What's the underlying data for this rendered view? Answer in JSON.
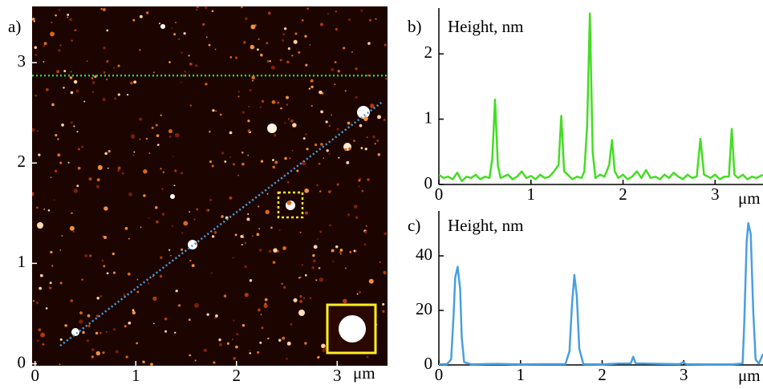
{
  "chart_data": [
    {
      "type": "image",
      "label": "a)",
      "x_unit": "μm",
      "xlim": [
        -0.03,
        3.5
      ],
      "ylim": [
        -0.02,
        3.56
      ],
      "xticks": [
        0,
        1,
        2,
        3
      ],
      "yticks": [
        0,
        1,
        2,
        3
      ],
      "profiles": [
        {
          "color": "#33cc33",
          "x": [
            -0.03,
            3.5
          ],
          "y": [
            2.87,
            2.87
          ]
        },
        {
          "color": "#4a9fe0",
          "x": [
            0.25,
            3.45
          ],
          "y": [
            0.18,
            2.61
          ]
        }
      ]
    },
    {
      "type": "line",
      "label": "b)",
      "y_label": "Height, nm",
      "x_unit": "μm",
      "color": "#44dd22",
      "xlim": [
        0,
        3.52
      ],
      "ylim": [
        0,
        2.64
      ],
      "xticks": [
        0,
        1,
        2,
        3
      ],
      "yticks": [
        0,
        1,
        2
      ],
      "x": [
        0,
        0.05,
        0.1,
        0.15,
        0.2,
        0.25,
        0.3,
        0.35,
        0.4,
        0.45,
        0.5,
        0.55,
        0.58,
        0.61,
        0.64,
        0.67,
        0.75,
        0.8,
        0.85,
        0.9,
        0.95,
        1.0,
        1.05,
        1.1,
        1.15,
        1.2,
        1.25,
        1.3,
        1.33,
        1.36,
        1.4,
        1.45,
        1.5,
        1.55,
        1.58,
        1.61,
        1.64,
        1.67,
        1.7,
        1.75,
        1.8,
        1.85,
        1.88,
        1.91,
        1.95,
        2.0,
        2.05,
        2.1,
        2.15,
        2.2,
        2.25,
        2.3,
        2.35,
        2.4,
        2.45,
        2.5,
        2.55,
        2.6,
        2.65,
        2.7,
        2.75,
        2.8,
        2.84,
        2.88,
        2.95,
        3.0,
        3.05,
        3.1,
        3.15,
        3.18,
        3.21,
        3.25,
        3.3,
        3.35,
        3.4,
        3.45,
        3.52
      ],
      "values": [
        0.15,
        0.1,
        0.12,
        0.08,
        0.18,
        0.05,
        0.12,
        0.1,
        0.15,
        0.08,
        0.12,
        0.1,
        0.4,
        1.3,
        0.3,
        0.1,
        0.15,
        0.08,
        0.12,
        0.2,
        0.1,
        0.13,
        0.08,
        0.15,
        0.1,
        0.12,
        0.2,
        0.3,
        1.05,
        0.2,
        0.15,
        0.08,
        0.12,
        0.1,
        0.2,
        0.9,
        2.62,
        0.5,
        0.1,
        0.15,
        0.12,
        0.3,
        0.68,
        0.2,
        0.1,
        0.15,
        0.08,
        0.12,
        0.2,
        0.1,
        0.22,
        0.1,
        0.12,
        0.08,
        0.15,
        0.1,
        0.18,
        0.12,
        0.08,
        0.15,
        0.1,
        0.12,
        0.7,
        0.15,
        0.1,
        0.15,
        0.08,
        0.12,
        0.12,
        0.85,
        0.15,
        0.1,
        0.15,
        0.08,
        0.12,
        0.1,
        0.15
      ]
    },
    {
      "type": "line",
      "label": "c)",
      "y_label": "Height, nm",
      "x_unit": "μm",
      "color": "#4a9fe0",
      "xlim": [
        0,
        3.97
      ],
      "ylim": [
        0,
        55
      ],
      "xticks": [
        0,
        1,
        2,
        3
      ],
      "yticks": [
        0,
        20,
        40
      ],
      "x": [
        0,
        0.1,
        0.15,
        0.18,
        0.2,
        0.23,
        0.26,
        0.28,
        0.31,
        0.4,
        0.7,
        1.0,
        1.3,
        1.55,
        1.6,
        1.63,
        1.66,
        1.69,
        1.72,
        1.77,
        2.0,
        2.2,
        2.35,
        2.38,
        2.41,
        2.7,
        2.95,
        2.99,
        3.03,
        3.3,
        3.6,
        3.72,
        3.74,
        3.77,
        3.79,
        3.82,
        3.85,
        3.88,
        3.92,
        3.97
      ],
      "values": [
        0.2,
        0.3,
        2,
        18,
        32,
        36,
        28,
        10,
        1,
        0.2,
        0.4,
        0.2,
        0.3,
        0.3,
        5,
        22,
        33,
        25,
        6,
        0.3,
        0.2,
        0.5,
        0.5,
        3,
        0.6,
        0.4,
        0.3,
        1,
        0.3,
        0.2,
        0.2,
        0.5,
        15,
        45,
        52,
        48,
        20,
        2,
        0.5,
        4
      ]
    }
  ]
}
